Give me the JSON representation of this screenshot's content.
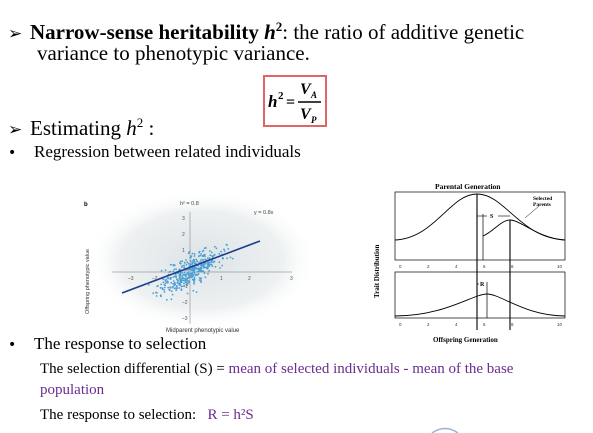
{
  "definition": {
    "bold_part": "Narrow-sense heritability ",
    "h_symbol": "h",
    "h_exp": "2",
    "rest_line1": ": the ratio of additive genetic",
    "line2": "variance to phenotypic variance."
  },
  "formula": {
    "lhs": "h",
    "lhs_exp": "2",
    "equals": "=",
    "num": "V",
    "num_sub": "A",
    "den": "V",
    "den_sub": "P"
  },
  "estimating": {
    "text": "Estimating ",
    "h": "h",
    "exp": "2",
    "colon": " :"
  },
  "regression_text": "Regression between related individuals",
  "scatter": {
    "panel_letter": "b",
    "h2_label": "h² = 0.8",
    "eq_label": "y = 0.8x",
    "xlabel": "Midparent phenotypic value",
    "ylabel": "Offspring phenotypic value",
    "x_ticks": [
      "–3",
      "–2",
      "–1",
      "1",
      "2",
      "3"
    ],
    "y_ticks": [
      "3",
      "2",
      "1",
      "–1",
      "–2",
      "–3"
    ],
    "colors": {
      "point": "#4a9fd4",
      "line": "#1f3f8a"
    }
  },
  "selection_diagram": {
    "title": "Parental Generation",
    "ylabel": "Trait Distribution",
    "xlabel": "Offspring Generation",
    "selected_label_1": "Selected",
    "selected_label_2": "Parents",
    "s_label": "S",
    "r_label": "R",
    "ticks": [
      "0",
      "2",
      "4",
      "6",
      "8",
      "10"
    ]
  },
  "response": {
    "heading": "The response to selection",
    "sd_label": "The selection differential (S) = ",
    "sd_value_1": "mean of selected individuals - mean of the base",
    "sd_value_2": "population",
    "rts_label": "The response to selection:   ",
    "rts_formula": "R = h²S"
  }
}
